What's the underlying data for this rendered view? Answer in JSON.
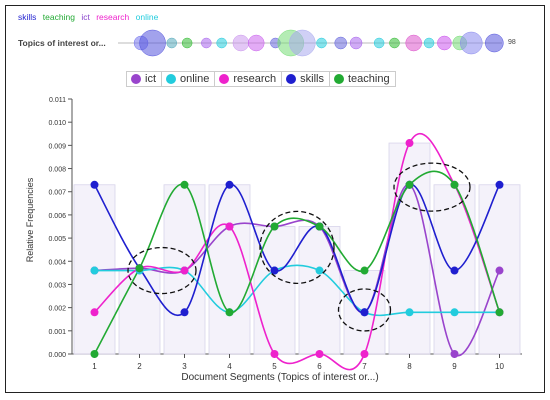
{
  "terms": [
    {
      "label": "skills",
      "color": "#1f1fcf"
    },
    {
      "label": "teaching",
      "color": "#22aa33"
    },
    {
      "label": "ict",
      "color": "#8844cc"
    },
    {
      "label": "research",
      "color": "#ee22cc"
    },
    {
      "label": "online",
      "color": "#22ccdd"
    }
  ],
  "doc_label": "Topics of interest or...",
  "doc_count": "98",
  "chart_data": {
    "type": "line",
    "categories": [
      "1",
      "2",
      "3",
      "4",
      "5",
      "6",
      "7",
      "8",
      "9",
      "10"
    ],
    "series": [
      {
        "name": "ict",
        "color": "#9944cc",
        "values": [
          0.0036,
          0.0037,
          0.0036,
          0.0055,
          0.0055,
          0.0055,
          0.0018,
          0.0073,
          0.0,
          0.0036
        ]
      },
      {
        "name": "online",
        "color": "#22ccdd",
        "values": [
          0.0036,
          0.0036,
          0.0036,
          0.0018,
          0.0036,
          0.0036,
          0.0018,
          0.0018,
          0.0018,
          0.0018
        ]
      },
      {
        "name": "research",
        "color": "#ee22cc",
        "values": [
          0.0018,
          0.0037,
          0.0036,
          0.0055,
          0.0,
          0.0,
          0.0,
          0.0091,
          0.0073,
          0.0018
        ]
      },
      {
        "name": "skills",
        "color": "#1f1fcf",
        "values": [
          0.0073,
          0.0037,
          0.0018,
          0.0073,
          0.0036,
          0.0055,
          0.0018,
          0.0073,
          0.0036,
          0.0073
        ]
      },
      {
        "name": "teaching",
        "color": "#22aa33",
        "values": [
          0.0,
          0.0037,
          0.0073,
          0.0018,
          0.0055,
          0.0055,
          0.0036,
          0.0073,
          0.0073,
          0.0018
        ]
      }
    ],
    "bars": [
      0.0073,
      0.0037,
      0.0073,
      0.0073,
      0.0055,
      0.0055,
      0.0036,
      0.0091,
      0.0073,
      0.0073
    ],
    "xlabel": "Document Segments (Topics of interest or...)",
    "ylabel": "Relative Frequencies",
    "ylim": [
      0,
      0.011
    ],
    "yticks": [
      "0.000",
      "0.001",
      "0.002",
      "0.003",
      "0.004",
      "0.005",
      "0.006",
      "0.007",
      "0.008",
      "0.009",
      "0.010",
      "0.011"
    ],
    "highlight_segments": [
      "2-3",
      "5-6",
      "7",
      "8-9"
    ]
  },
  "bubbles": [
    {
      "seg": 0.06,
      "r": 7,
      "color": "#7777ee"
    },
    {
      "seg": 0.09,
      "r": 13,
      "color": "#5555dd"
    },
    {
      "seg": 0.14,
      "r": 5,
      "color": "#5ab"
    },
    {
      "seg": 0.18,
      "r": 5,
      "color": "#3b3"
    },
    {
      "seg": 0.23,
      "r": 5,
      "color": "#a6e"
    },
    {
      "seg": 0.27,
      "r": 5,
      "color": "#2cd"
    },
    {
      "seg": 0.32,
      "r": 8,
      "color": "#c9e"
    },
    {
      "seg": 0.36,
      "r": 8,
      "color": "#c6e"
    },
    {
      "seg": 0.41,
      "r": 5,
      "color": "#66d"
    },
    {
      "seg": 0.45,
      "r": 13,
      "color": "#7d7"
    },
    {
      "seg": 0.48,
      "r": 13,
      "color": "#aae"
    },
    {
      "seg": 0.53,
      "r": 5,
      "color": "#2cd"
    },
    {
      "seg": 0.58,
      "r": 6,
      "color": "#66d"
    },
    {
      "seg": 0.62,
      "r": 6,
      "color": "#a6e"
    },
    {
      "seg": 0.68,
      "r": 5,
      "color": "#2cd"
    },
    {
      "seg": 0.72,
      "r": 5,
      "color": "#3b3"
    },
    {
      "seg": 0.77,
      "r": 8,
      "color": "#d5c"
    },
    {
      "seg": 0.81,
      "r": 5,
      "color": "#2cd"
    },
    {
      "seg": 0.85,
      "r": 7,
      "color": "#c5e"
    },
    {
      "seg": 0.89,
      "r": 7,
      "color": "#7d7"
    },
    {
      "seg": 0.92,
      "r": 11,
      "color": "#88e"
    },
    {
      "seg": 0.98,
      "r": 9,
      "color": "#55d"
    }
  ]
}
